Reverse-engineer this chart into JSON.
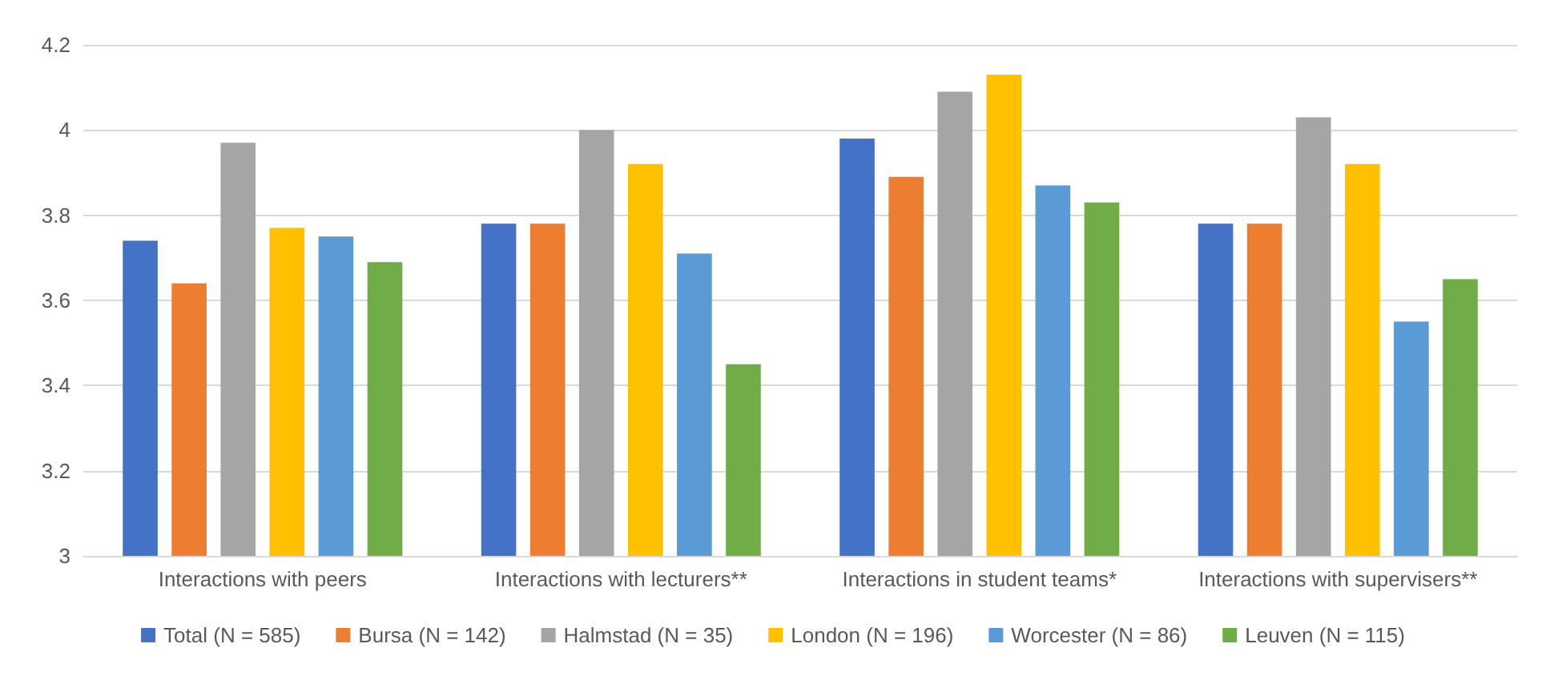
{
  "chart_data": {
    "type": "bar",
    "categories": [
      "Interactions with peers",
      "Interactions with lecturers**",
      "Interactions in student teams*",
      "Interactions with supervisers**"
    ],
    "series": [
      {
        "name": "Total (N = 585)",
        "color": "#4472c4",
        "values": [
          3.74,
          3.78,
          3.98,
          3.78
        ]
      },
      {
        "name": "Bursa (N = 142)",
        "color": "#ed7d31",
        "values": [
          3.64,
          3.78,
          3.89,
          3.78
        ]
      },
      {
        "name": "Halmstad (N = 35)",
        "color": "#a5a5a5",
        "values": [
          3.97,
          4.0,
          4.09,
          4.03
        ]
      },
      {
        "name": "London (N = 196)",
        "color": "#ffc000",
        "values": [
          3.77,
          3.92,
          4.13,
          3.92
        ]
      },
      {
        "name": "Worcester (N = 86)",
        "color": "#5b9bd5",
        "values": [
          3.75,
          3.71,
          3.87,
          3.55
        ]
      },
      {
        "name": "Leuven (N = 115)",
        "color": "#70ad47",
        "values": [
          3.69,
          3.45,
          3.83,
          3.65
        ]
      }
    ],
    "ylim": [
      3,
      4.2
    ],
    "yticks": [
      3,
      3.2,
      3.4,
      3.6,
      3.8,
      4,
      4.2
    ],
    "grid": "y",
    "legend": "bottom"
  }
}
